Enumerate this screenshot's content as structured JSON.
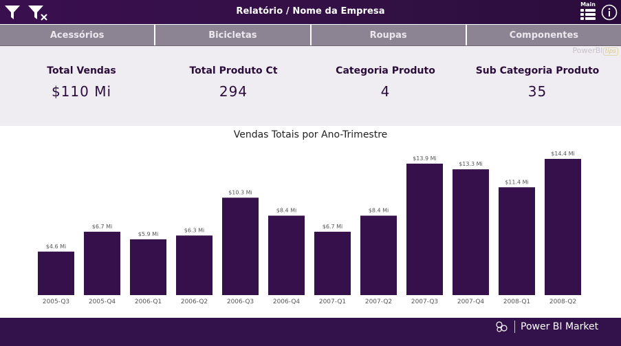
{
  "header": {
    "title": "Relatório / Nome da Empresa",
    "main_label": "Main",
    "icons": [
      "filter-icon",
      "clear-filter-icon",
      "list-menu-icon",
      "info-icon"
    ]
  },
  "tabs": [
    {
      "label": "Acessórios"
    },
    {
      "label": "Bicicletas"
    },
    {
      "label": "Roupas"
    },
    {
      "label": "Componentes"
    }
  ],
  "watermark": {
    "text": "PowerBI",
    "tips": "tips"
  },
  "kpis": [
    {
      "label": "Total Vendas",
      "value": "$110 Mi"
    },
    {
      "label": "Total Produto Ct",
      "value": "294"
    },
    {
      "label": "Categoria Produto",
      "value": "4"
    },
    {
      "label": "Sub Categoria Produto",
      "value": "35"
    }
  ],
  "chart_data": {
    "type": "bar",
    "title": "Vendas Totais por Ano-Trimestre",
    "categories": [
      "2005-Q3",
      "2005-Q4",
      "2006-Q1",
      "2006-Q2",
      "2006-Q3",
      "2006-Q4",
      "2007-Q1",
      "2007-Q2",
      "2007-Q3",
      "2007-Q4",
      "2008-Q1",
      "2008-Q2"
    ],
    "values": [
      4.6,
      6.7,
      5.9,
      6.3,
      10.3,
      8.4,
      6.7,
      8.4,
      13.9,
      13.3,
      11.4,
      14.4
    ],
    "data_labels": [
      "$4.6 Mi",
      "$6.7 Mi",
      "$5.9 Mi",
      "$6.3 Mi",
      "$10.3 Mi",
      "$8.4 Mi",
      "$6.7 Mi",
      "$8.4 Mi",
      "$13.9 Mi",
      "$13.3 Mi",
      "$11.4 Mi",
      "$14.4 Mi"
    ],
    "ylim": [
      0,
      14.4
    ],
    "grid": false,
    "bar_color": "#35104a"
  },
  "footer": {
    "brand": "Power BI Market"
  },
  "colors": {
    "accent": "#35104a",
    "tab_bg": "#8c8393",
    "kpi_bg": "#efedf1"
  }
}
